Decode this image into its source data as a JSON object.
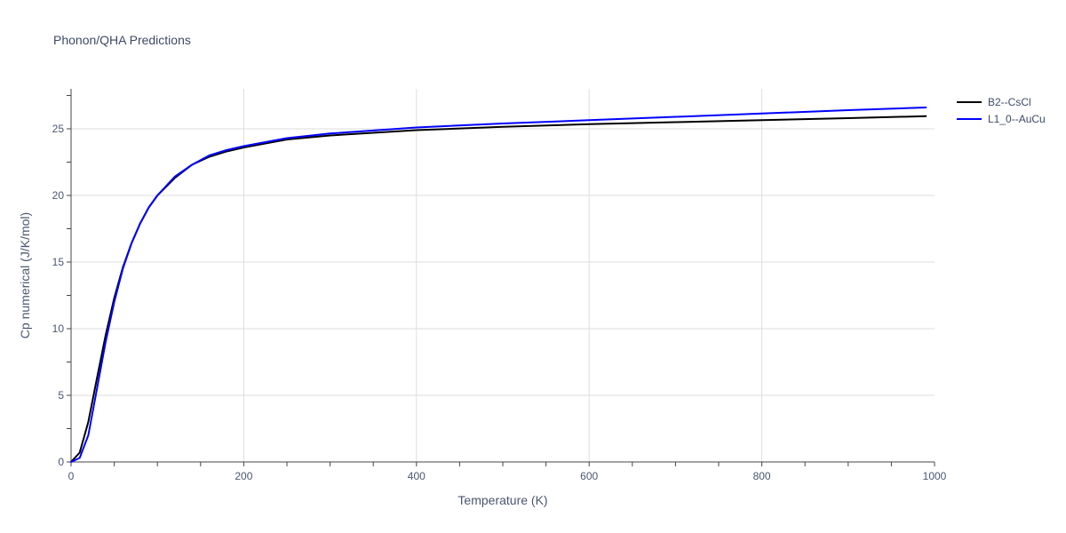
{
  "chart_data": {
    "type": "line",
    "title": "Phonon/QHA Predictions",
    "xlabel": "Temperature (K)",
    "ylabel": "Cp numerical (J/K/mol)",
    "xlim": [
      0,
      1000
    ],
    "ylim": [
      0,
      28
    ],
    "xticks": [
      0,
      200,
      400,
      600,
      800,
      1000
    ],
    "yticks": [
      0,
      5,
      10,
      15,
      20,
      25
    ],
    "grid": true,
    "legend_position": "top-right",
    "series": [
      {
        "name": "B2--CsCl",
        "color": "#000000",
        "x": [
          0,
          10,
          20,
          30,
          40,
          50,
          60,
          70,
          80,
          90,
          100,
          120,
          140,
          160,
          180,
          200,
          250,
          300,
          400,
          500,
          600,
          700,
          800,
          900,
          990
        ],
        "y": [
          0,
          0.7,
          3.0,
          6.3,
          9.5,
          12.3,
          14.6,
          16.4,
          17.9,
          19.1,
          20.0,
          21.3,
          22.3,
          22.9,
          23.3,
          23.6,
          24.2,
          24.5,
          24.9,
          25.15,
          25.35,
          25.5,
          25.65,
          25.8,
          25.95
        ]
      },
      {
        "name": "L1_0--AuCu",
        "color": "#0000ff",
        "x": [
          0,
          10,
          20,
          30,
          40,
          50,
          60,
          70,
          80,
          90,
          100,
          120,
          140,
          160,
          180,
          200,
          250,
          300,
          400,
          500,
          600,
          700,
          800,
          900,
          990
        ],
        "y": [
          0,
          0.3,
          2.0,
          5.5,
          9.0,
          12.0,
          14.5,
          16.4,
          17.9,
          19.1,
          20.0,
          21.4,
          22.3,
          23.0,
          23.4,
          23.7,
          24.3,
          24.65,
          25.1,
          25.4,
          25.65,
          25.9,
          26.15,
          26.4,
          26.6
        ]
      }
    ]
  }
}
